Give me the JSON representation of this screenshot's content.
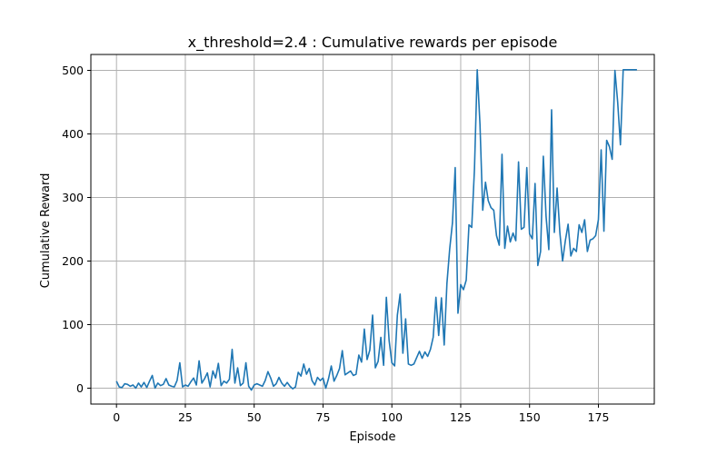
{
  "chart_data": {
    "type": "line",
    "title": "x_threshold=2.4 : Cumulative rewards per episode",
    "xlabel": "Episode",
    "ylabel": "Cumulative Reward",
    "xlim": [
      -9.3,
      195.3
    ],
    "ylim": [
      -25,
      525
    ],
    "xticks": [
      0,
      25,
      50,
      75,
      100,
      125,
      150,
      175
    ],
    "yticks": [
      0,
      100,
      200,
      300,
      400,
      500
    ],
    "grid": true,
    "line_color": "#1f77b4",
    "series": [
      {
        "x_start": 0,
        "values": [
          11,
          2,
          1,
          7,
          6,
          3,
          5,
          0,
          8,
          2,
          9,
          1,
          11,
          20,
          0,
          8,
          4,
          6,
          15,
          5,
          3,
          2,
          12,
          40,
          2,
          5,
          3,
          10,
          16,
          5,
          43,
          8,
          15,
          24,
          2,
          27,
          16,
          39,
          4,
          11,
          8,
          14,
          61,
          8,
          32,
          4,
          8,
          40,
          3,
          -3,
          5,
          7,
          5,
          3,
          12,
          26,
          16,
          3,
          7,
          17,
          8,
          3,
          9,
          3,
          -1,
          2,
          25,
          19,
          38,
          22,
          31,
          12,
          5,
          17,
          12,
          16,
          0,
          15,
          35,
          11,
          20,
          31,
          59,
          21,
          24,
          27,
          20,
          22,
          52,
          41,
          93,
          45,
          60,
          115,
          32,
          42,
          80,
          36,
          143,
          75,
          40,
          35,
          115,
          148,
          55,
          109,
          38,
          36,
          38,
          48,
          58,
          47,
          57,
          50,
          61,
          80,
          143,
          83,
          142,
          68,
          165,
          219,
          260,
          347,
          118,
          163,
          155,
          170,
          257,
          253,
          345,
          501,
          415,
          280,
          324,
          295,
          284,
          280,
          240,
          225,
          368,
          220,
          255,
          230,
          244,
          232,
          356,
          250,
          253,
          347,
          243,
          235,
          322,
          193,
          215,
          365,
          270,
          218,
          438,
          245,
          315,
          245,
          200,
          232,
          258,
          208,
          220,
          215,
          257,
          245,
          265,
          215,
          233,
          235,
          240,
          265,
          375,
          247,
          390,
          380,
          360,
          500,
          450,
          383,
          501,
          501,
          501,
          501,
          501,
          501
        ]
      }
    ]
  }
}
